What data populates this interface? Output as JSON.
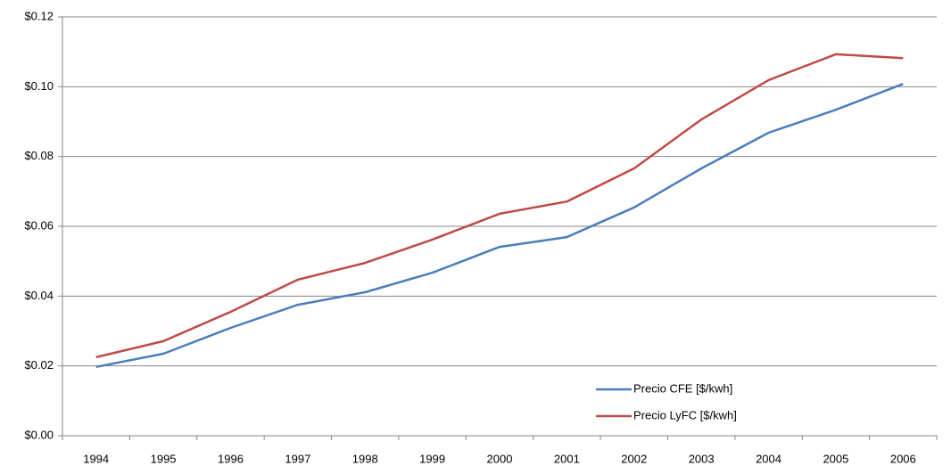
{
  "chart_data": {
    "type": "line",
    "categories": [
      "1994",
      "1995",
      "1996",
      "1997",
      "1998",
      "1999",
      "2000",
      "2001",
      "2002",
      "2003",
      "2004",
      "2005",
      "2006"
    ],
    "series": [
      {
        "name": "Precio CFE [$/kwh]",
        "color": "#4a7ebb",
        "values": [
          0.0197,
          0.0235,
          0.0309,
          0.0375,
          0.0411,
          0.0467,
          0.0541,
          0.0569,
          0.0654,
          0.0766,
          0.0868,
          0.0934,
          0.1008
        ]
      },
      {
        "name": "Precio LyFC [$/kwh]",
        "color": "#be4b48",
        "values": [
          0.0225,
          0.0271,
          0.0355,
          0.0447,
          0.0495,
          0.0562,
          0.0636,
          0.0671,
          0.0766,
          0.0906,
          0.1019,
          0.1093,
          0.1082
        ]
      }
    ],
    "ylim": [
      0,
      0.12
    ],
    "yticks": [
      {
        "value": 0,
        "label": "$0.00"
      },
      {
        "value": 0.02,
        "label": "$0.02"
      },
      {
        "value": 0.04,
        "label": "$0.04"
      },
      {
        "value": 0.06,
        "label": "$0.06"
      },
      {
        "value": 0.08,
        "label": "$0.08"
      },
      {
        "value": 0.1,
        "label": "$0.10"
      },
      {
        "value": 0.12,
        "label": "$0.12"
      }
    ],
    "grid": true,
    "legend": "lower right"
  }
}
